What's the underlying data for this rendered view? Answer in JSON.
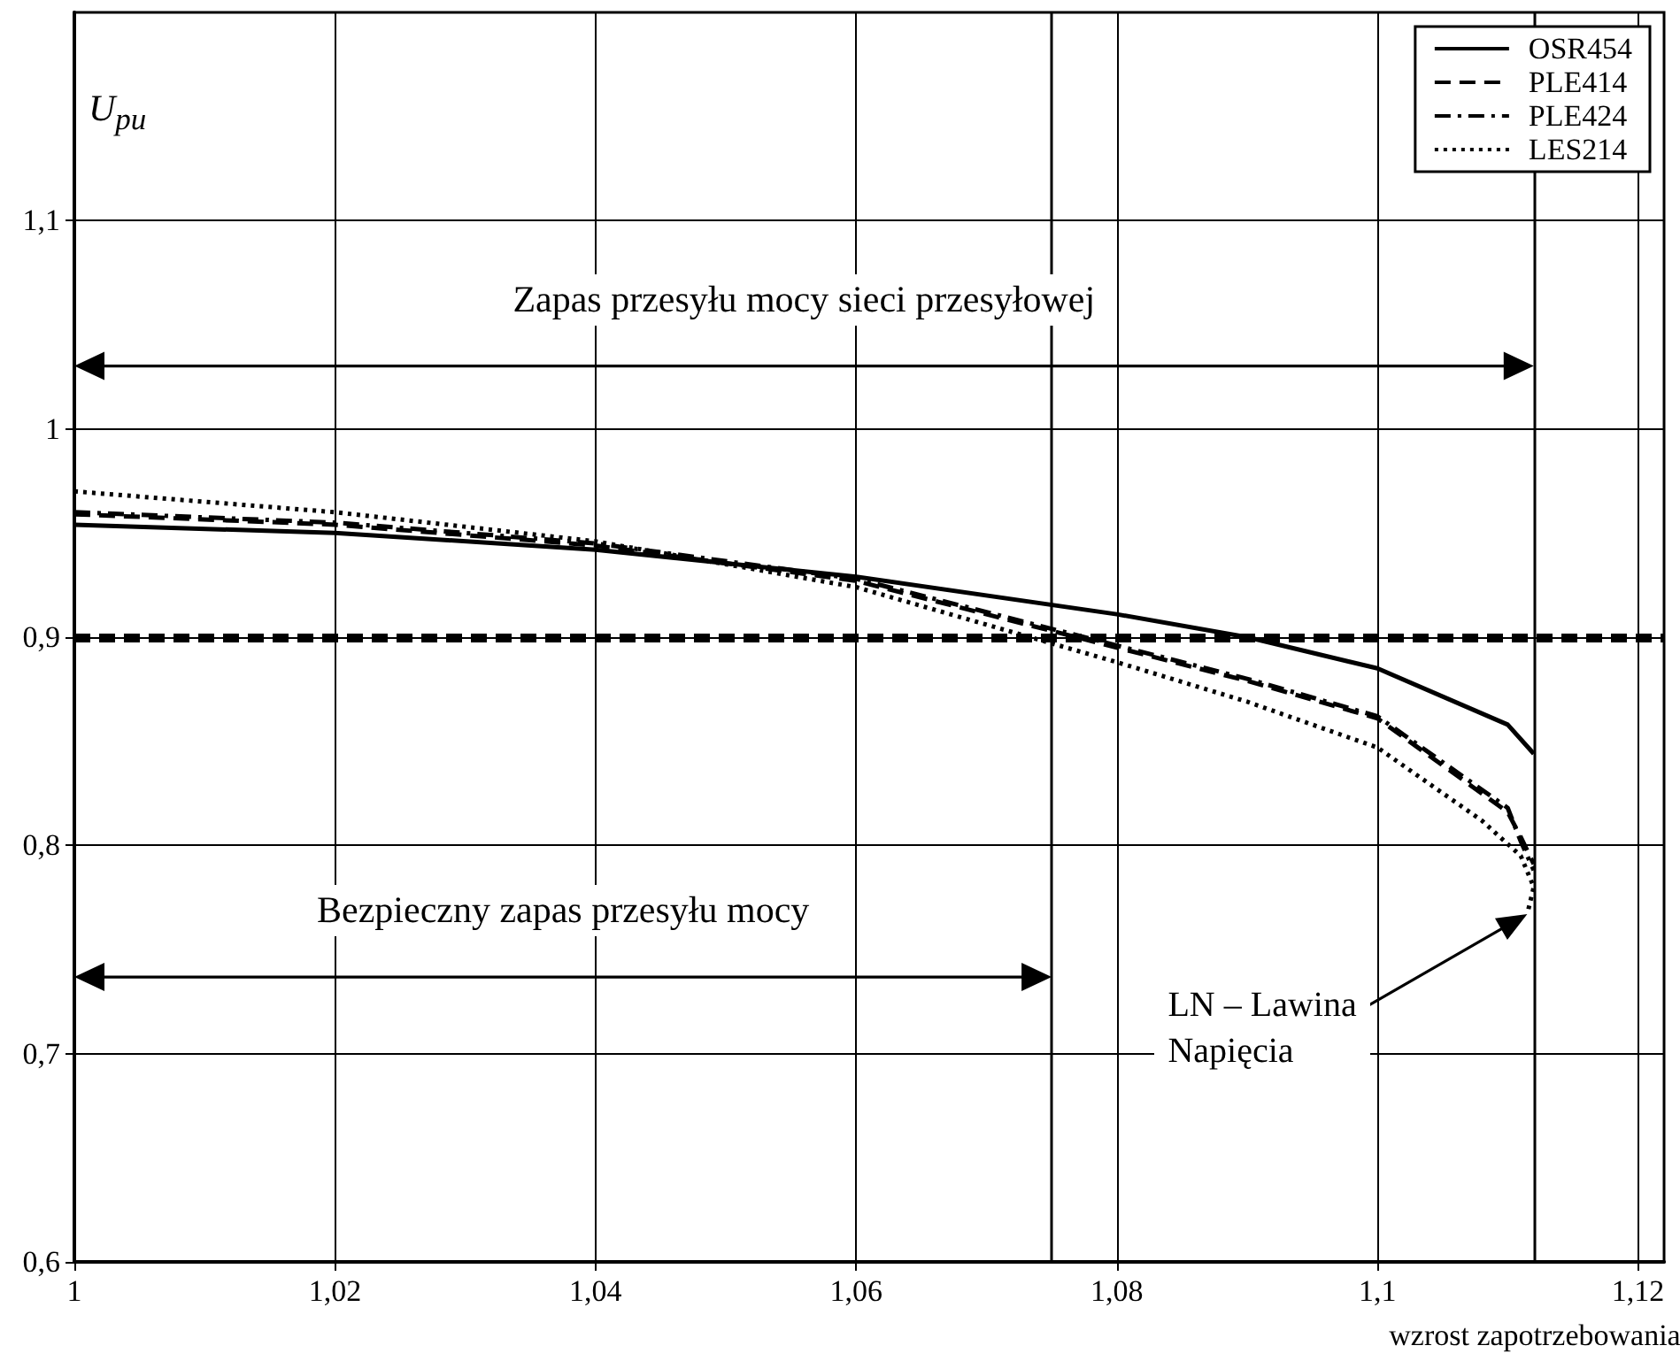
{
  "chart_data": {
    "type": "line",
    "xlabel": "wzrost zapotrzebowania",
    "ylabel": "U$_{pu}$",
    "xlim": [
      1,
      1.122
    ],
    "ylim": [
      0.6,
      1.2
    ],
    "xticks": [
      {
        "value": 1,
        "label": "1"
      },
      {
        "value": 1.02,
        "label": "1,02"
      },
      {
        "value": 1.04,
        "label": "1,04"
      },
      {
        "value": 1.06,
        "label": "1,06"
      },
      {
        "value": 1.08,
        "label": "1,08"
      },
      {
        "value": 1.1,
        "label": "1,1"
      },
      {
        "value": 1.12,
        "label": "1,12"
      }
    ],
    "yticks": [
      {
        "value": 0.6,
        "label": "0,6"
      },
      {
        "value": 0.7,
        "label": "0,7"
      },
      {
        "value": 0.8,
        "label": "0,8"
      },
      {
        "value": 0.9,
        "label": "0,9"
      },
      1,
      {
        "value": 1.1,
        "label": "1,1"
      }
    ],
    "grid": true,
    "legend": "top right",
    "marker": "none",
    "series": [
      {
        "name": "OSR454",
        "color": "#000000",
        "line_style": "solid",
        "x": [
          1,
          1.02,
          1.04,
          1.06,
          1.08,
          1.09,
          1.1,
          1.11,
          1.112
        ],
        "values": [
          0.954,
          0.95,
          0.942,
          0.929,
          0.911,
          0.9,
          0.885,
          0.858,
          0.844
        ]
      },
      {
        "name": "PLE414",
        "color": "#000000",
        "line_style": "dashed",
        "x": [
          1,
          1.02,
          1.04,
          1.06,
          1.08,
          1.09,
          1.1,
          1.11,
          1.111,
          1.112
        ],
        "values": [
          0.959,
          0.954,
          0.944,
          0.927,
          0.895,
          0.879,
          0.861,
          0.816,
          0.804,
          0.791
        ]
      },
      {
        "name": "PLE424",
        "color": "#000000",
        "line_style": "dashdot",
        "x": [
          1,
          1.02,
          1.04,
          1.06,
          1.08,
          1.09,
          1.1,
          1.11,
          1.111,
          1.112
        ],
        "values": [
          0.96,
          0.955,
          0.945,
          0.928,
          0.896,
          0.88,
          0.862,
          0.818,
          0.802,
          0.788
        ]
      },
      {
        "name": "LES214",
        "color": "#000000",
        "line_style": "dotted",
        "x": [
          1,
          1.02,
          1.04,
          1.06,
          1.08,
          1.09,
          1.1,
          1.108,
          1.111,
          1.112,
          1.1115
        ],
        "values": [
          0.97,
          0.96,
          0.946,
          0.924,
          0.888,
          0.869,
          0.847,
          0.812,
          0.795,
          0.78,
          0.767
        ]
      }
    ],
    "ref_lines": [
      {
        "axis": "y",
        "value": 0.9,
        "color": "#000000",
        "line_style": "dashed"
      },
      {
        "axis": "x",
        "value": 1.075,
        "color": "#000000",
        "line_style": "solid"
      },
      {
        "axis": "x",
        "value": 1.112,
        "color": "#000000",
        "line_style": "solid"
      }
    ],
    "annotations": [
      "Zapas przesyłu mocy sieci przesyłowej",
      "Bezpieczny zapas przesyłu mocy",
      "LN – Lawina\nNapięcia"
    ]
  }
}
